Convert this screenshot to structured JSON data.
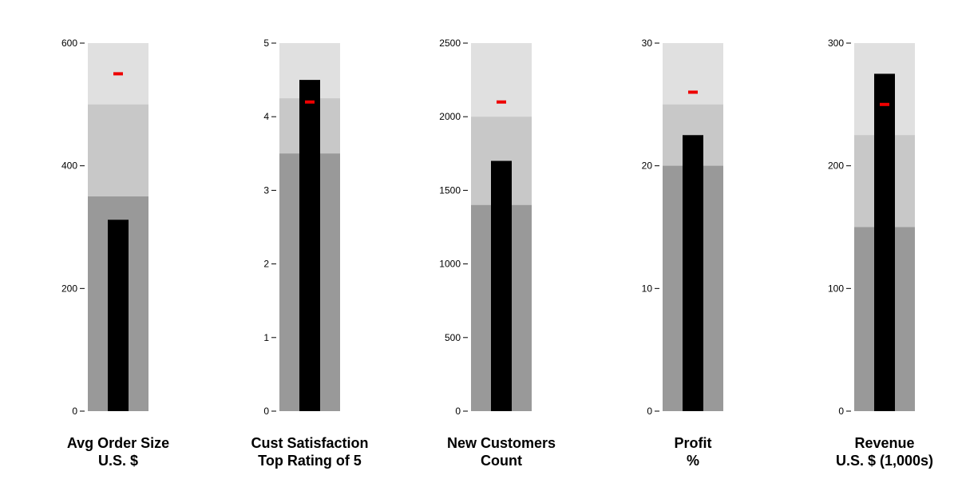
{
  "chart_data": {
    "type": "bullet",
    "orientation": "vertical",
    "band_colors": [
      "#999999",
      "#c8c8c8",
      "#e0e0e0"
    ],
    "bar_color": "#000000",
    "target_color": "#ee0000",
    "panels": [
      {
        "title": "Avg Order Size",
        "subtitle": "U.S. $",
        "ylim": [
          0,
          600
        ],
        "ticks": [
          0,
          200,
          400,
          600
        ],
        "ranges": [
          350,
          500,
          600
        ],
        "value": 312,
        "target": 550
      },
      {
        "title": "Cust Satisfaction",
        "subtitle": "Top Rating of 5",
        "ylim": [
          0,
          5
        ],
        "ticks": [
          0,
          1,
          2,
          3,
          4,
          5
        ],
        "ranges": [
          3.5,
          4.25,
          5
        ],
        "value": 4.5,
        "target": 4.2
      },
      {
        "title": "New Customers",
        "subtitle": "Count",
        "ylim": [
          0,
          2500
        ],
        "ticks": [
          0,
          500,
          1000,
          1500,
          2000,
          2500
        ],
        "ranges": [
          1400,
          2000,
          2500
        ],
        "value": 1700,
        "target": 2100
      },
      {
        "title": "Profit",
        "subtitle": "%",
        "ylim": [
          0,
          30
        ],
        "ticks": [
          0,
          10,
          20,
          30
        ],
        "ranges": [
          20,
          25,
          30
        ],
        "value": 22.5,
        "target": 26
      },
      {
        "title": "Revenue",
        "subtitle": "U.S. $ (1,000s)",
        "ylim": [
          0,
          300
        ],
        "ticks": [
          0,
          100,
          200,
          300
        ],
        "ranges": [
          150,
          225,
          300
        ],
        "value": 275,
        "target": 250
      }
    ]
  }
}
